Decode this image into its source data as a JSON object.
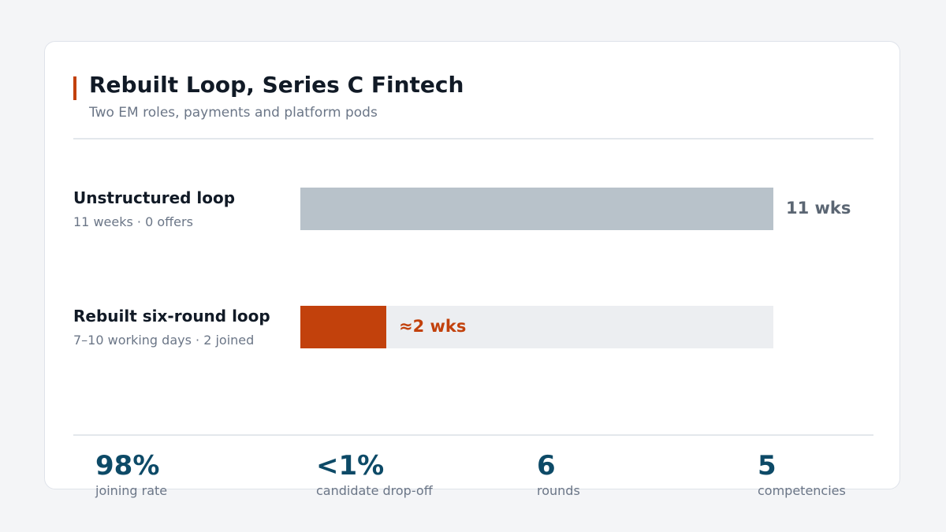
{
  "title": "Rebuilt Loop, Series C Fintech",
  "subtitle": "Two EM roles, payments and platform pods",
  "colors": {
    "accent": "#c2410c",
    "muted_bar": "#b8c2ca",
    "track": "#eceef1",
    "stat": "#0d4a67",
    "muted_text": "#5b6673"
  },
  "chart_data": {
    "type": "bar",
    "orientation": "horizontal",
    "unit": "weeks",
    "xlim": [
      0,
      11
    ],
    "categories": [
      "Unstructured loop",
      "Rebuilt six-round loop"
    ],
    "values": [
      11,
      2
    ],
    "rows": [
      {
        "label": "Unstructured loop",
        "detail": "11 weeks · 0 offers",
        "value": 11,
        "value_label": "11 wks",
        "color": "#b8c2ca"
      },
      {
        "label": "Rebuilt six-round loop",
        "detail": "7–10 working days · 2 joined",
        "value": 2,
        "value_label": "≈2 wks",
        "color": "#c2410c"
      }
    ]
  },
  "stats": [
    {
      "value": "98%",
      "label": "joining rate"
    },
    {
      "value": "<1%",
      "label": "candidate drop-off"
    },
    {
      "value": "6",
      "label": "rounds"
    },
    {
      "value": "5",
      "label": "competencies"
    }
  ]
}
